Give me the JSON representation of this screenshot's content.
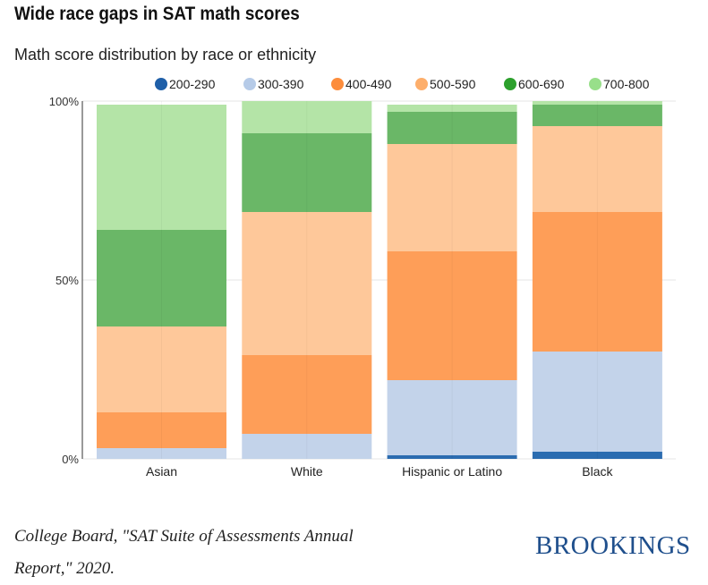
{
  "title": "Wide race gaps in SAT math scores",
  "subtitle": "Math score distribution by race or ethnicity",
  "source": "College Board, \"SAT Suite of Assessments Annual Report,\" 2020.",
  "logo": "BROOKINGS",
  "chart_data": {
    "type": "bar",
    "stacked": true,
    "categories": [
      "Asian",
      "White",
      "Hispanic or Latino",
      "Black"
    ],
    "series": [
      {
        "name": "200-290",
        "color": "#2b6cb0",
        "legend_color": "#1f5fa8",
        "values": [
          0,
          0,
          1,
          2
        ]
      },
      {
        "name": "300-390",
        "color": "#c3d3ea",
        "legend_color": "#b6cbe8",
        "values": [
          3,
          7,
          21,
          28
        ]
      },
      {
        "name": "400-490",
        "color": "#fe9e58",
        "legend_color": "#fd8d3c",
        "values": [
          10,
          22,
          36,
          39
        ]
      },
      {
        "name": "500-590",
        "color": "#fec89a",
        "legend_color": "#fdae6b",
        "values": [
          24,
          40,
          30,
          24
        ]
      },
      {
        "name": "600-690",
        "color": "#6ab767",
        "legend_color": "#2ca02c",
        "values": [
          27,
          22,
          9,
          6
        ]
      },
      {
        "name": "700-800",
        "color": "#b4e4a7",
        "legend_color": "#98df8a",
        "values": [
          35,
          9,
          2,
          1
        ]
      }
    ],
    "ylim": [
      0,
      100
    ],
    "yticks": [
      "0%",
      "50%",
      "100%"
    ],
    "ytick_values": [
      0,
      50,
      100
    ],
    "grid": true,
    "legend": "top"
  }
}
